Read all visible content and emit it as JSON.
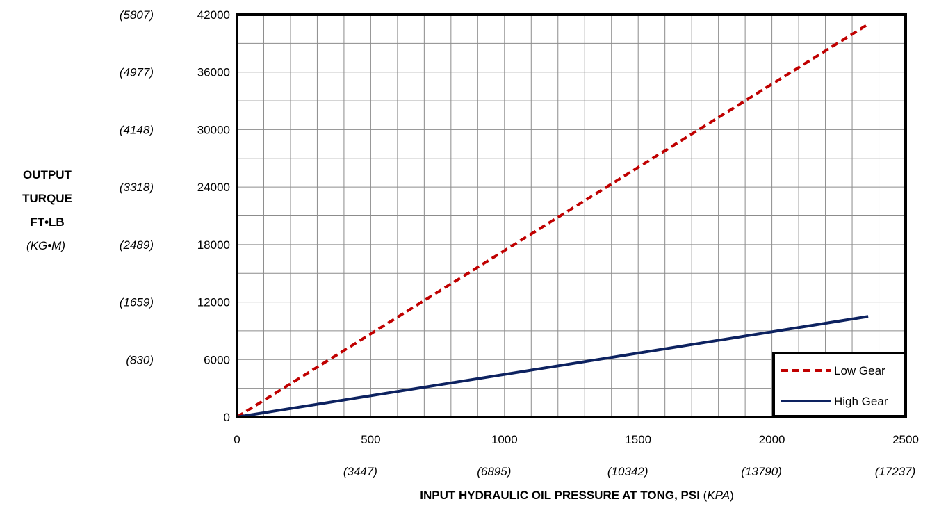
{
  "chart_data": {
    "type": "line",
    "x": [
      0,
      2360
    ],
    "series": [
      {
        "name": "Low Gear",
        "values": [
          0,
          41000
        ],
        "color": "#C00000",
        "style": "dashed"
      },
      {
        "name": "High Gear",
        "values": [
          0,
          10500
        ],
        "color": "#0D2260",
        "style": "solid"
      }
    ],
    "xlim": [
      0,
      2500
    ],
    "ylim": [
      0,
      42000
    ],
    "x_ticks": [
      "0",
      "500",
      "1000",
      "1500",
      "2000",
      "2500"
    ],
    "x_ticks_secondary": [
      "(3447)",
      "(6895)",
      "(10342)",
      "(13790)",
      "(17237)"
    ],
    "y_ticks": [
      "0",
      "6000",
      "12000",
      "18000",
      "24000",
      "30000",
      "36000",
      "42000"
    ],
    "y_ticks_secondary": [
      "(830)",
      "(1659)",
      "(2489)",
      "(3318)",
      "(4148)",
      "(4977)",
      "(5807)"
    ],
    "ylabel": {
      "line1": "OUTPUT",
      "line2": "TURQUE",
      "line3": "FT•LB",
      "line4": "(KG•M)"
    },
    "xlabel": {
      "main": "INPUT  HYDRAULIC OIL PRESSURE AT TONG, PSI",
      "unit_open": " (",
      "unit": "KPA",
      "unit_close": ")"
    },
    "grid": true,
    "legend_position": "bottom-right"
  }
}
